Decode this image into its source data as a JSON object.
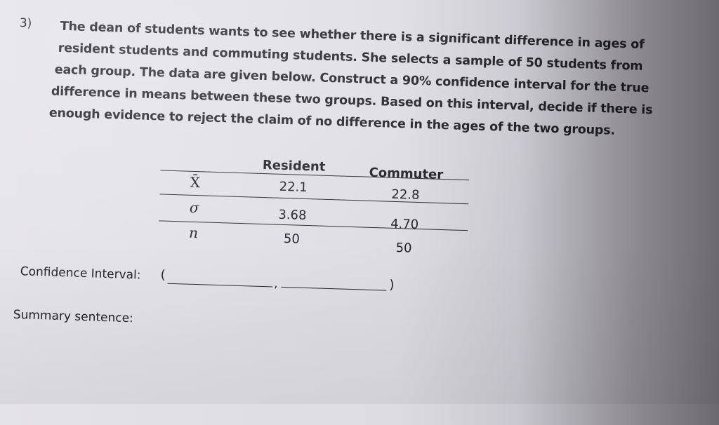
{
  "problem": {
    "number": "3)",
    "lines": [
      "The dean of students wants to see whether there is a significant difference in ages of",
      "resident students and commuting students. She selects a sample of 50 students from",
      "each group. The data are given below. Construct a 90% confidence interval for the true",
      "difference in means between these two groups. Based on this interval, decide if there is",
      "enough evidence to reject the claim of no difference in the ages of the two groups."
    ]
  },
  "table": {
    "headers": [
      "Resident",
      "Commuter"
    ],
    "rows": [
      {
        "label": "X̄",
        "values": [
          "22.1",
          "22.8"
        ]
      },
      {
        "label": "σ",
        "values": [
          "3.68",
          "4.70"
        ]
      },
      {
        "label": "n",
        "values": [
          "50",
          "50"
        ]
      }
    ]
  },
  "answer": {
    "ci_label": "Confidence Interval:",
    "open_paren": "(",
    "comma": ",",
    "close_paren": ")",
    "summary_label": "Summary sentence:"
  }
}
